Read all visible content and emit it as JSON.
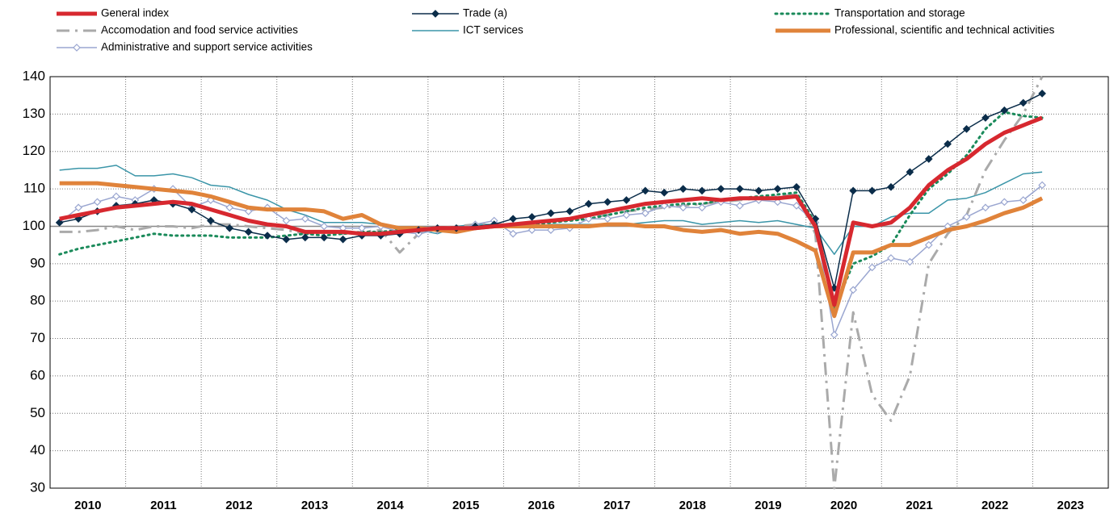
{
  "chart_data": {
    "type": "line",
    "x": [
      2010.125,
      2010.375,
      2010.625,
      2010.875,
      2011.125,
      2011.375,
      2011.625,
      2011.875,
      2012.125,
      2012.375,
      2012.625,
      2012.875,
      2013.125,
      2013.375,
      2013.625,
      2013.875,
      2014.125,
      2014.375,
      2014.625,
      2014.875,
      2015.125,
      2015.375,
      2015.625,
      2015.875,
      2016.125,
      2016.375,
      2016.625,
      2016.875,
      2017.125,
      2017.375,
      2017.625,
      2017.875,
      2018.125,
      2018.375,
      2018.625,
      2018.875,
      2019.125,
      2019.375,
      2019.625,
      2019.875,
      2020.125,
      2020.375,
      2020.625,
      2020.875,
      2021.125,
      2021.375,
      2021.625,
      2021.875,
      2022.125,
      2022.375,
      2022.625,
      2022.875,
      2023.125
    ],
    "series": [
      {
        "name": "General index",
        "color": "#d7282f",
        "linestyle": "solid",
        "linewidth": 5,
        "marker": "none",
        "values": [
          102,
          103,
          104,
          105,
          105.5,
          106,
          106.5,
          106,
          104.5,
          103,
          101.5,
          100.5,
          100,
          98.5,
          98.5,
          98.5,
          98,
          98,
          98.5,
          99,
          99.5,
          99.5,
          99.5,
          100,
          100.5,
          101,
          101.5,
          102,
          103,
          104,
          105,
          106,
          106.5,
          107,
          107.5,
          107,
          107.5,
          107.5,
          107.5,
          108,
          100,
          79,
          101,
          100,
          101,
          105,
          111,
          115,
          118,
          122,
          125,
          127,
          129
        ]
      },
      {
        "name": "Trade (a)",
        "color": "#0b2d4a",
        "linestyle": "solid",
        "linewidth": 1.5,
        "marker": "diamond",
        "values": [
          101,
          102,
          104,
          105.5,
          106,
          107,
          106,
          104.5,
          101.5,
          99.5,
          98.5,
          97.5,
          96.5,
          97,
          97,
          96.5,
          97.5,
          97.5,
          98,
          99,
          99.5,
          99.5,
          100,
          100.5,
          102,
          102.5,
          103.5,
          104,
          106,
          106.5,
          107,
          109.5,
          109,
          110,
          109.5,
          110,
          110,
          109.5,
          110,
          110.5,
          102,
          83.5,
          109.5,
          109.5,
          110.5,
          114.5,
          118,
          122,
          126,
          129,
          131,
          133,
          135.5
        ]
      },
      {
        "name": "Transportation and storage",
        "color": "#1a8a5a",
        "linestyle": "dotted",
        "linewidth": 3,
        "marker": "none",
        "values": [
          92.5,
          94,
          95,
          96,
          97,
          98,
          97.5,
          97.5,
          97.5,
          97,
          97,
          97,
          97.5,
          98,
          97.5,
          98,
          98.5,
          98.5,
          99,
          99,
          99.5,
          99.5,
          99.5,
          100,
          100,
          100.5,
          101,
          101.5,
          102,
          103,
          104,
          105,
          105.5,
          106,
          106,
          107,
          107.5,
          108,
          108.5,
          109,
          101,
          78,
          90,
          92,
          95,
          103,
          110,
          114,
          119,
          126,
          130.5,
          129.5,
          129
        ]
      },
      {
        "name": "Accomodation and food service activities",
        "color": "#aaaaaa",
        "linestyle": "dashdot",
        "linewidth": 3,
        "marker": "none",
        "values": [
          98.5,
          98.5,
          99,
          100,
          99,
          100,
          100,
          99.5,
          100.5,
          100.5,
          100,
          99.5,
          99,
          98,
          98.5,
          98,
          98.5,
          99,
          93,
          98,
          99.5,
          100,
          100.5,
          100.5,
          100.5,
          101,
          101.5,
          102,
          102.5,
          103,
          104,
          104.5,
          105,
          105.5,
          106,
          106.5,
          107,
          107.5,
          108,
          108.5,
          98,
          30,
          77,
          55,
          48,
          60,
          90,
          98,
          103,
          115,
          123,
          130,
          140
        ]
      },
      {
        "name": "ICT services",
        "color": "#3a95a8",
        "linestyle": "solid",
        "linewidth": 1.5,
        "marker": "none",
        "values": [
          115,
          115.5,
          115.5,
          116.3,
          113.5,
          113.5,
          114,
          113,
          111,
          110.5,
          108.5,
          107,
          104.5,
          103,
          101,
          101,
          101,
          100.5,
          99.5,
          99,
          98,
          100,
          100.5,
          100.5,
          100,
          100,
          100.5,
          100.5,
          100.5,
          100.5,
          100.5,
          101,
          101.5,
          101.5,
          100.5,
          101,
          101.5,
          101,
          101.5,
          100.5,
          99.5,
          92.5,
          100,
          100,
          102.5,
          103.5,
          103.5,
          107,
          107.5,
          109,
          111.5,
          114,
          114.5
        ]
      },
      {
        "name": "Professional, scientific and technical activities",
        "color": "#e0833a",
        "linestyle": "solid",
        "linewidth": 5,
        "marker": "none",
        "values": [
          111.5,
          111.5,
          111.5,
          111,
          110.5,
          110,
          109.5,
          109,
          108,
          106.5,
          105,
          104.5,
          104.5,
          104.5,
          104,
          102,
          103,
          100.5,
          99.5,
          99.5,
          99,
          98.5,
          99.5,
          100,
          100,
          100,
          100,
          100,
          100,
          100.5,
          100.5,
          100,
          100,
          99,
          98.5,
          99,
          98,
          98.5,
          98,
          96,
          93.5,
          76,
          93,
          93,
          95,
          95,
          97,
          99,
          100,
          101.5,
          103.5,
          105,
          107.5
        ]
      },
      {
        "name": "Administrative and support service activities",
        "color": "#9aa6d0",
        "linestyle": "solid",
        "linewidth": 1.5,
        "marker": "open-diamond",
        "values": [
          101,
          105,
          106.5,
          108,
          107,
          110,
          110,
          105,
          107,
          105,
          104,
          105,
          101.5,
          102,
          100,
          99.5,
          99.5,
          100,
          98.5,
          98,
          99,
          99,
          100.5,
          101.5,
          98,
          99,
          99,
          99.5,
          102,
          102,
          103,
          103.5,
          105.5,
          105,
          105,
          106.5,
          105.5,
          107,
          106.5,
          105.5,
          101,
          71,
          83,
          89,
          91.5,
          90.5,
          95,
          100,
          102.5,
          105,
          106.5,
          107,
          111
        ]
      }
    ],
    "xlim": [
      2010,
      2024
    ],
    "xticks": [
      2010,
      2011,
      2012,
      2013,
      2014,
      2015,
      2016,
      2017,
      2018,
      2019,
      2020,
      2021,
      2022,
      2023
    ],
    "ylim": [
      30,
      140
    ],
    "yticks": [
      30,
      40,
      50,
      60,
      70,
      80,
      90,
      100,
      110,
      120,
      130,
      140
    ],
    "reference_line": 100,
    "grid": true,
    "legend": "top"
  }
}
